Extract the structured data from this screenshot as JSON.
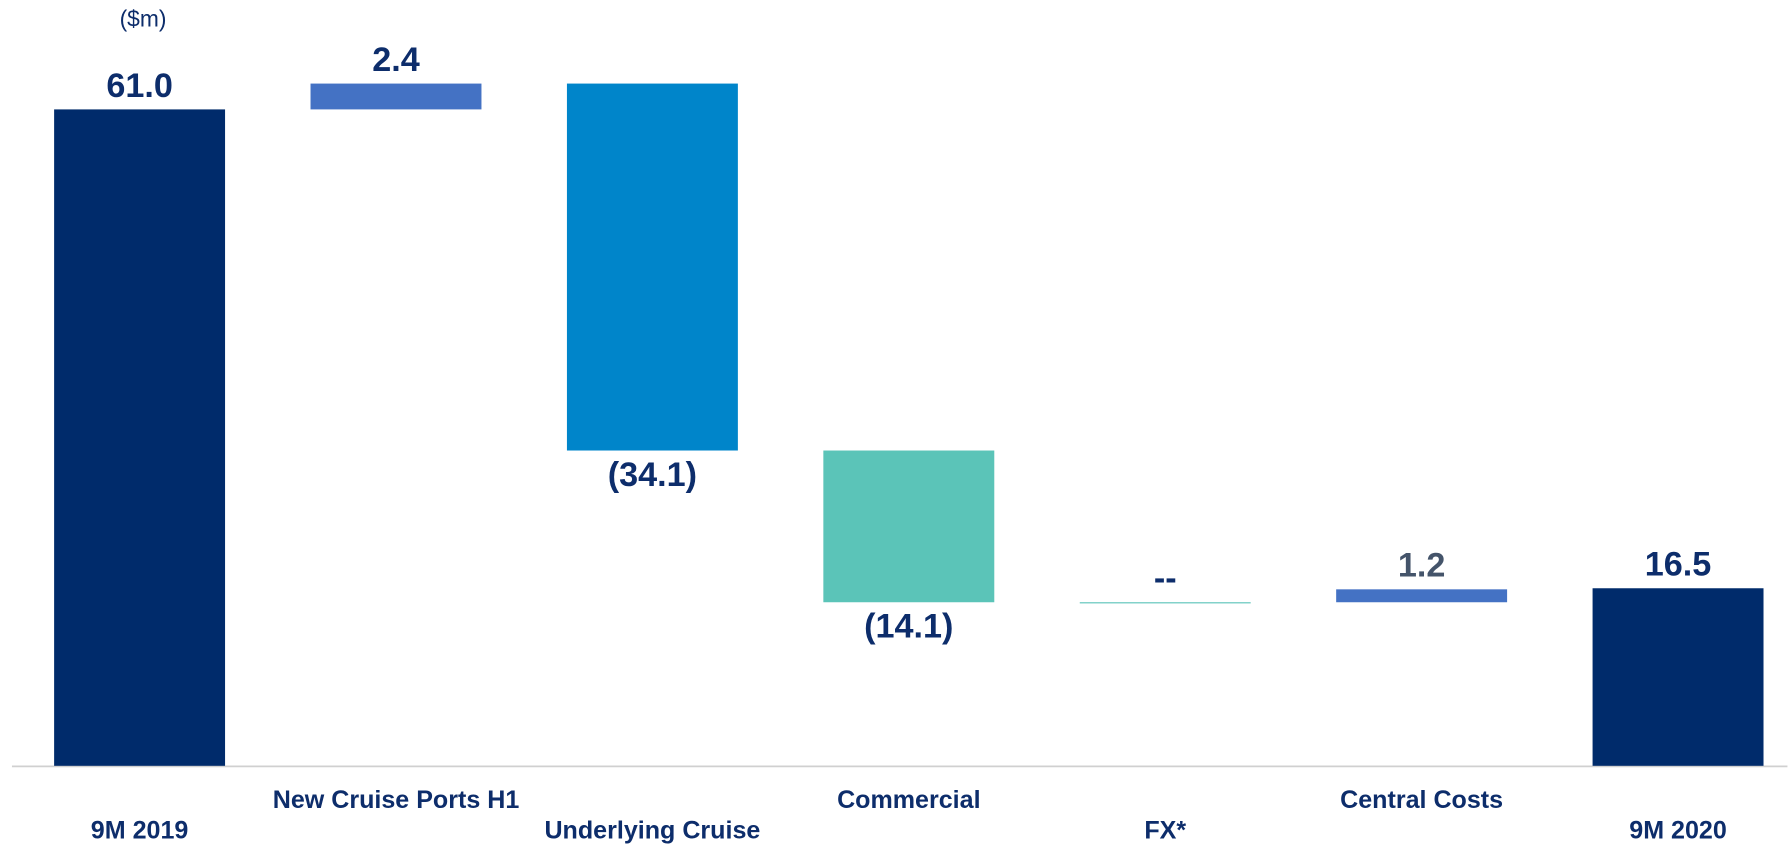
{
  "chart_data": {
    "type": "waterfall",
    "subtitle": "($m)",
    "categories": [
      "9M 2019",
      "New Cruise Ports H1",
      "Underlying Cruise",
      "Commercial",
      "FX*",
      "Central Costs",
      "9M 2020"
    ],
    "values": [
      61.0,
      2.4,
      -34.1,
      -14.1,
      0,
      1.2,
      16.5
    ],
    "value_labels": [
      "61.0",
      "2.4",
      "(34.1)",
      "(14.1)",
      "--",
      "1.2",
      "16.5"
    ],
    "colors": [
      "#002b6b",
      "#4472c4",
      "#0085ca",
      "#5bc4b8",
      "#5bc4b8",
      "#4472c4",
      "#002b6b"
    ]
  }
}
